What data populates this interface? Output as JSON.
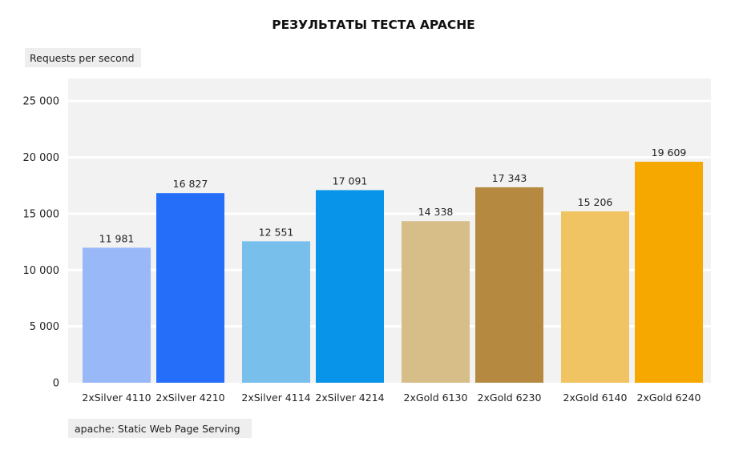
{
  "chart_data": {
    "type": "bar",
    "title": "РЕЗУЛЬТАТЫ ТЕСТА APACHE",
    "ylabel": "Requests per second",
    "xlabel": "",
    "footnote": "apache: Static Web Page Serving",
    "ylim": [
      0,
      27000
    ],
    "yticks": [
      0,
      5000,
      10000,
      15000,
      20000,
      25000
    ],
    "ytick_labels": [
      "0",
      "5 000",
      "10 000",
      "15 000",
      "20 000",
      "25 000"
    ],
    "grid": true,
    "legend": "none",
    "categories": [
      "2xSilver 4110",
      "2xSilver 4210",
      "2xSilver 4114",
      "2xSilver 4214",
      "2xGold 6130",
      "2xGold 6230",
      "2xGold 6140",
      "2xGold 6240"
    ],
    "values": [
      11981,
      16827,
      12551,
      17091,
      14338,
      17343,
      15206,
      19609
    ],
    "value_labels": [
      "11 981",
      "16 827",
      "12 551",
      "17 091",
      "14 338",
      "17 343",
      "15 206",
      "19 609"
    ],
    "colors": [
      "#99b8f7",
      "#246ef9",
      "#79bfec",
      "#0895e9",
      "#d7bd88",
      "#b58a40",
      "#f0c463",
      "#f6a700"
    ]
  }
}
